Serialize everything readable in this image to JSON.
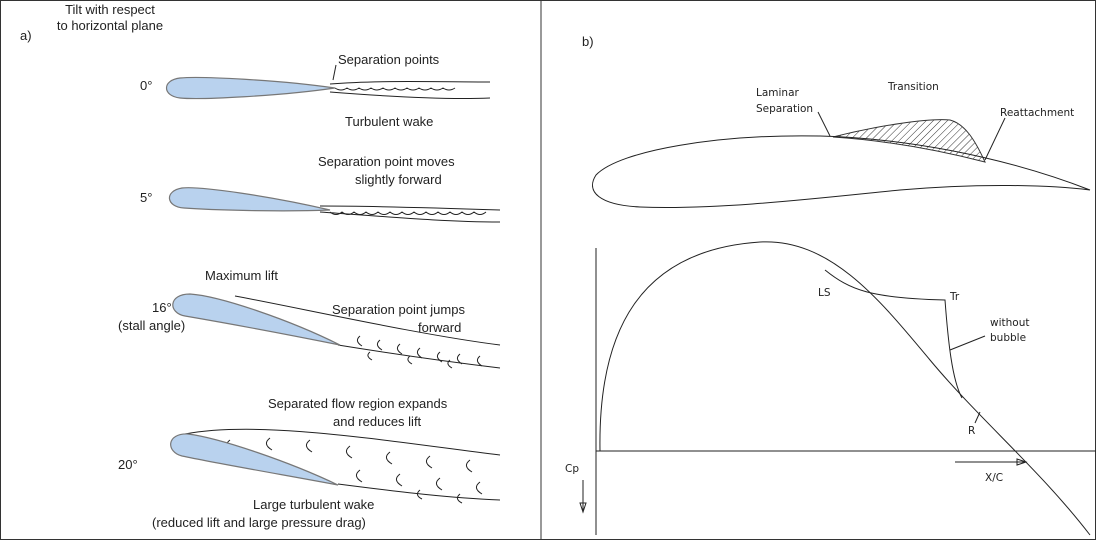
{
  "panel_a": {
    "label": "a)",
    "header": [
      "Tilt with respect",
      "to horizontal plane"
    ],
    "cases": [
      {
        "angle": [
          "0°"
        ],
        "notes": [
          [
            "Separation points"
          ],
          [
            "Turbulent wake"
          ]
        ]
      },
      {
        "angle": [
          "5°"
        ],
        "notes": [
          [
            "Separation point moves",
            "slightly forward"
          ]
        ]
      },
      {
        "angle": [
          "16°",
          "(stall angle)"
        ],
        "notes": [
          [
            "Maximum lift"
          ],
          [
            "Separation point jumps",
            "forward"
          ]
        ]
      },
      {
        "angle": [
          "20°"
        ],
        "notes": [
          [
            "Separated flow region expands",
            "and reduces lift"
          ],
          [
            "Large turbulent wake",
            "(reduced lift and large pressure drag)"
          ]
        ]
      }
    ]
  },
  "panel_b": {
    "label": "b)",
    "airfoil_labels": [
      [
        "Laminar",
        "Separation"
      ],
      [
        "Transition"
      ],
      [
        "Reattachment"
      ]
    ],
    "plot_labels": [
      [
        "LS"
      ],
      [
        "Tr"
      ],
      [
        "without",
        "bubble"
      ],
      [
        "R"
      ],
      [
        "Cp"
      ],
      [
        "X/C"
      ]
    ]
  }
}
